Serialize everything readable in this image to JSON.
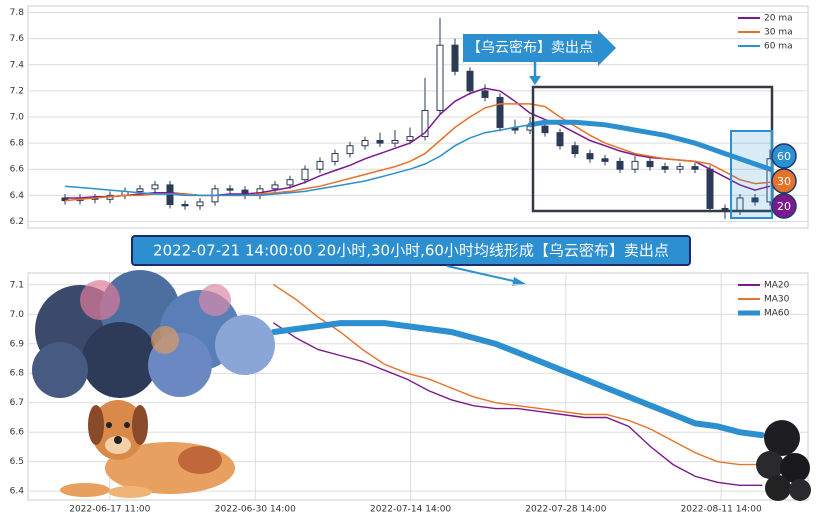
{
  "chart_data": [
    {
      "type": "candlestick",
      "open": [
        6.38,
        6.36,
        6.38,
        6.37,
        6.4,
        6.43,
        6.45,
        6.48,
        6.33,
        6.32,
        6.35,
        6.45,
        6.44,
        6.4,
        6.45,
        6.48,
        6.52,
        6.6,
        6.66,
        6.72,
        6.78,
        6.82,
        6.8,
        6.82,
        6.85,
        7.05,
        7.55,
        7.35,
        7.2,
        7.15,
        6.92,
        6.9,
        6.93,
        6.88,
        6.78,
        6.72,
        6.68,
        6.66,
        6.6,
        6.66,
        6.62,
        6.6,
        6.62,
        6.6,
        6.3,
        6.28,
        6.38,
        6.35
      ],
      "high": [
        6.41,
        6.41,
        6.41,
        6.43,
        6.46,
        6.48,
        6.51,
        6.51,
        6.36,
        6.38,
        6.48,
        6.48,
        6.47,
        6.48,
        6.51,
        6.55,
        6.63,
        6.69,
        6.75,
        6.81,
        6.85,
        6.88,
        6.9,
        6.92,
        7.3,
        7.76,
        7.6,
        7.38,
        7.25,
        7.18,
        6.98,
        7.0,
        6.96,
        6.91,
        6.81,
        6.75,
        6.71,
        6.69,
        6.7,
        6.69,
        6.65,
        6.65,
        6.65,
        6.63,
        6.33,
        6.41,
        6.41,
        6.75
      ],
      "low": [
        6.33,
        6.33,
        6.34,
        6.34,
        6.37,
        6.4,
        6.42,
        6.3,
        6.29,
        6.29,
        6.32,
        6.41,
        6.37,
        6.37,
        6.42,
        6.45,
        6.49,
        6.57,
        6.63,
        6.69,
        6.75,
        6.77,
        6.77,
        6.79,
        6.82,
        7.02,
        7.32,
        7.17,
        7.12,
        6.89,
        6.87,
        6.87,
        6.85,
        6.75,
        6.69,
        6.65,
        6.63,
        6.57,
        6.57,
        6.59,
        6.57,
        6.57,
        6.57,
        6.27,
        6.22,
        6.25,
        6.32,
        6.32
      ],
      "close": [
        6.36,
        6.38,
        6.37,
        6.4,
        6.43,
        6.45,
        6.48,
        6.33,
        6.32,
        6.35,
        6.45,
        6.44,
        6.4,
        6.45,
        6.48,
        6.52,
        6.6,
        6.66,
        6.72,
        6.78,
        6.82,
        6.8,
        6.82,
        6.85,
        7.05,
        7.55,
        7.35,
        7.2,
        7.15,
        6.92,
        6.9,
        6.93,
        6.88,
        6.78,
        6.72,
        6.68,
        6.66,
        6.6,
        6.66,
        6.62,
        6.6,
        6.62,
        6.6,
        6.3,
        6.28,
        6.38,
        6.35,
        6.68
      ],
      "candle_color": "#2b3a55",
      "series": [
        {
          "name": "20 ma",
          "color": "#7b1a8c",
          "values": [
            6.38,
            6.38,
            6.39,
            6.39,
            6.4,
            6.41,
            6.42,
            6.42,
            6.41,
            6.4,
            6.4,
            6.41,
            6.41,
            6.42,
            6.44,
            6.46,
            6.5,
            6.55,
            6.59,
            6.63,
            6.68,
            6.72,
            6.76,
            6.8,
            6.88,
            7.02,
            7.12,
            7.18,
            7.22,
            7.2,
            7.12,
            7.03,
            6.98,
            6.94,
            6.88,
            6.82,
            6.78,
            6.74,
            6.71,
            6.69,
            6.68,
            6.67,
            6.66,
            6.6,
            6.54,
            6.48,
            6.44,
            6.47
          ]
        },
        {
          "name": "30 ma",
          "color": "#e6732a",
          "values": [
            6.36,
            6.37,
            6.38,
            6.39,
            6.4,
            6.4,
            6.41,
            6.41,
            6.41,
            6.4,
            6.4,
            6.4,
            6.4,
            6.41,
            6.42,
            6.43,
            6.45,
            6.47,
            6.5,
            6.53,
            6.56,
            6.59,
            6.62,
            6.66,
            6.72,
            6.82,
            6.92,
            7.0,
            7.07,
            7.1,
            7.1,
            7.1,
            7.08,
            7.0,
            6.93,
            6.86,
            6.8,
            6.76,
            6.72,
            6.7,
            6.68,
            6.67,
            6.66,
            6.64,
            6.58,
            6.52,
            6.49,
            6.5
          ]
        },
        {
          "name": "60 ma",
          "color": "#2c8fd0",
          "values": [
            6.47,
            6.46,
            6.45,
            6.44,
            6.43,
            6.42,
            6.41,
            6.41,
            6.4,
            6.4,
            6.4,
            6.4,
            6.4,
            6.4,
            6.41,
            6.42,
            6.43,
            6.45,
            6.47,
            6.49,
            6.51,
            6.54,
            6.57,
            6.6,
            6.64,
            6.7,
            6.78,
            6.84,
            6.88,
            6.9,
            6.92,
            6.94,
            6.96,
            6.96,
            6.96,
            6.95,
            6.94,
            6.92,
            6.9,
            6.88,
            6.86,
            6.83,
            6.8,
            6.76,
            6.72,
            6.68,
            6.64,
            6.6
          ]
        }
      ],
      "ylim": [
        6.15,
        7.85
      ],
      "yticks": [
        6.2,
        6.4,
        6.6,
        6.8,
        {
          "value": 7,
          "label": "7.0"
        },
        7.2,
        7.4,
        7.6,
        7.8
      ],
      "grid": true,
      "legend": "upper right",
      "annotations": [
        "【乌云密布】卖出点",
        "60",
        "30",
        "20",
        "2022-07-21 14:00:00 20小时,30小时,60小时均线形成【乌云密布】卖出点"
      ]
    },
    {
      "type": "line",
      "x": [
        "2022-07-02 06:00",
        "2022-07-04 06:00",
        "2022-07-06 06:00",
        "2022-07-08 06:00",
        "2022-07-10 06:00",
        "2022-07-12 06:00",
        "2022-07-14 06:00",
        "2022-07-16 06:00",
        "2022-07-18 06:00",
        "2022-07-20 06:00",
        "2022-07-22 06:00",
        "2022-07-24 06:00",
        "2022-07-26 06:00",
        "2022-07-28 06:00",
        "2022-07-30 06:00",
        "2022-08-01 06:00",
        "2022-08-03 06:00",
        "2022-08-05 06:00",
        "2022-08-07 06:00",
        "2022-08-09 06:00",
        "2022-08-11 06:00",
        "2022-08-13 06:00",
        "2022-08-15 06:00"
      ],
      "series": [
        {
          "name": "MA20",
          "color": "#7b1a8c",
          "values": [
            6.97,
            6.92,
            6.88,
            6.86,
            6.84,
            6.81,
            6.78,
            6.74,
            6.71,
            6.69,
            6.68,
            6.68,
            6.67,
            6.66,
            6.65,
            6.65,
            6.62,
            6.55,
            6.49,
            6.45,
            6.43,
            6.42,
            6.42
          ]
        },
        {
          "name": "MA30",
          "color": "#e6732a",
          "values": [
            7.1,
            7.05,
            6.99,
            6.94,
            6.88,
            6.83,
            6.8,
            6.78,
            6.75,
            6.72,
            6.7,
            6.69,
            6.68,
            6.67,
            6.66,
            6.66,
            6.64,
            6.61,
            6.57,
            6.53,
            6.5,
            6.49,
            6.49
          ]
        },
        {
          "name": "MA60",
          "color": "#2c8fd0",
          "values": [
            6.94,
            6.95,
            6.96,
            6.97,
            6.97,
            6.97,
            6.96,
            6.95,
            6.94,
            6.92,
            6.9,
            6.87,
            6.84,
            6.81,
            6.78,
            6.75,
            6.72,
            6.69,
            6.66,
            6.63,
            6.62,
            6.6,
            6.59
          ]
        }
      ],
      "xlim": [
        "2022-06-10 02:00",
        "2022-08-19 10:00"
      ],
      "xticks": [
        "2022-06-17 11:00",
        "2022-06-30 14:00",
        "2022-07-14 14:00",
        "2022-07-28 14:00",
        "2022-08-11 14:00"
      ],
      "ylim": [
        6.37,
        7.14
      ],
      "yticks": [
        6.4,
        6.5,
        6.6,
        6.7,
        6.8,
        6.9,
        {
          "value": 7,
          "label": "7.0"
        },
        7.1
      ],
      "grid": true,
      "legend": "upper right"
    }
  ]
}
